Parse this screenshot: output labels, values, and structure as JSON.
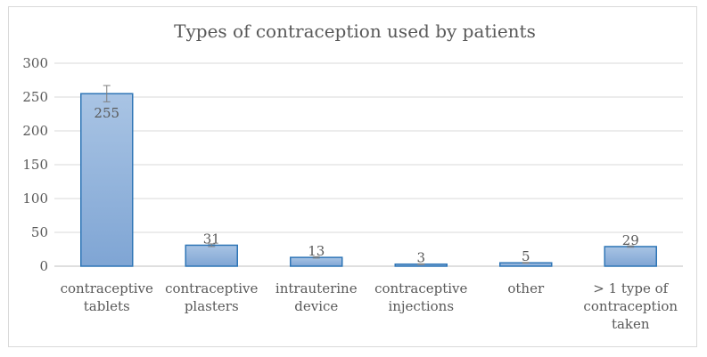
{
  "chart_data": {
    "type": "bar",
    "title": "Types of contraception used by patients",
    "categories": [
      [
        "contraceptive",
        "tablets"
      ],
      [
        "contraceptive",
        "plasters"
      ],
      [
        "intrauterine",
        "device"
      ],
      [
        "contraceptive",
        "injections"
      ],
      [
        "other"
      ],
      [
        "> 1 type of",
        "contraception",
        "taken"
      ]
    ],
    "values": [
      255,
      31,
      13,
      3,
      5,
      29
    ],
    "data_labels": [
      "255",
      "31",
      "13",
      "3",
      "5",
      "29"
    ],
    "error_bars": [
      12,
      2,
      1,
      0.5,
      0.5,
      1
    ],
    "xlabel": "",
    "ylabel": "",
    "ylim": [
      0,
      300
    ],
    "yticks": [
      0,
      50,
      100,
      150,
      200,
      250,
      300
    ],
    "grid": true,
    "legend": "none",
    "colors": {
      "bar_top": "#a9c4e4",
      "bar_bottom": "#7fa5d4",
      "bar_border": "#2e75b6",
      "grid": "#d9d9d9",
      "axis": "#bfbfbf",
      "text": "#595959",
      "error_bar": "#7f7f7f"
    }
  }
}
